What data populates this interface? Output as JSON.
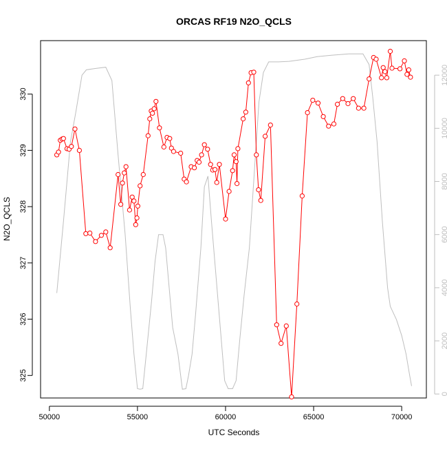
{
  "chart_data": {
    "type": "line",
    "title": "ORCAS RF19 N2O_QCLS",
    "xlabel": "UTC Seconds",
    "ylabel": "N2O_QCLS",
    "xlim": [
      49500,
      71400
    ],
    "ylim": [
      324.6,
      330.95
    ],
    "y2lim": [
      -150,
      13300
    ],
    "x_ticks": [
      50000,
      55000,
      60000,
      65000,
      70000
    ],
    "y_ticks": [
      325,
      326,
      327,
      328,
      329,
      330
    ],
    "y2_ticks": [
      0,
      2000,
      4000,
      6000,
      8000,
      10000,
      12000
    ],
    "grid": false,
    "legend": "none",
    "colors": {
      "n2o": "#ff0000",
      "altitude": "#bebebe",
      "axes": "#000000"
    },
    "series": [
      {
        "role": "n2o",
        "axis": "left",
        "style": "line+points",
        "points": [
          [
            50420,
            328.92
          ],
          [
            50520,
            328.97
          ],
          [
            50620,
            329.18
          ],
          [
            50720,
            329.2
          ],
          [
            50800,
            329.21
          ],
          [
            51000,
            329.03
          ],
          [
            51120,
            329.02
          ],
          [
            51250,
            329.07
          ],
          [
            51450,
            329.38
          ],
          [
            51700,
            329.0
          ],
          [
            52070,
            327.52
          ],
          [
            52300,
            327.53
          ],
          [
            52620,
            327.38
          ],
          [
            52950,
            327.49
          ],
          [
            53200,
            327.55
          ],
          [
            53450,
            327.27
          ],
          [
            53900,
            328.57
          ],
          [
            54050,
            328.04
          ],
          [
            54150,
            328.42
          ],
          [
            54250,
            328.6
          ],
          [
            54350,
            328.71
          ],
          [
            54550,
            327.94
          ],
          [
            54700,
            328.17
          ],
          [
            54800,
            328.1
          ],
          [
            54900,
            327.68
          ],
          [
            54970,
            327.8
          ],
          [
            55020,
            328.01
          ],
          [
            55150,
            328.37
          ],
          [
            55330,
            328.57
          ],
          [
            55600,
            329.26
          ],
          [
            55700,
            329.56
          ],
          [
            55780,
            329.7
          ],
          [
            55850,
            329.66
          ],
          [
            55950,
            329.74
          ],
          [
            56050,
            329.87
          ],
          [
            56250,
            329.4
          ],
          [
            56500,
            329.06
          ],
          [
            56680,
            329.23
          ],
          [
            56830,
            329.21
          ],
          [
            56930,
            329.04
          ],
          [
            57050,
            328.98
          ],
          [
            57450,
            328.95
          ],
          [
            57650,
            328.49
          ],
          [
            57780,
            328.44
          ],
          [
            58050,
            328.71
          ],
          [
            58230,
            328.69
          ],
          [
            58390,
            328.82
          ],
          [
            58500,
            328.79
          ],
          [
            58640,
            328.92
          ],
          [
            58800,
            329.1
          ],
          [
            58980,
            329.02
          ],
          [
            59150,
            328.75
          ],
          [
            59270,
            328.65
          ],
          [
            59400,
            328.66
          ],
          [
            59500,
            328.43
          ],
          [
            59650,
            328.75
          ],
          [
            60000,
            327.78
          ],
          [
            60200,
            328.27
          ],
          [
            60400,
            328.64
          ],
          [
            60490,
            328.92
          ],
          [
            60600,
            328.8
          ],
          [
            60650,
            328.41
          ],
          [
            60700,
            329.03
          ],
          [
            61000,
            329.56
          ],
          [
            61150,
            329.68
          ],
          [
            61300,
            330.2
          ],
          [
            61450,
            330.38
          ],
          [
            61600,
            330.39
          ],
          [
            61750,
            328.92
          ],
          [
            61870,
            328.3
          ],
          [
            62000,
            328.11
          ],
          [
            62250,
            329.25
          ],
          [
            62550,
            329.45
          ],
          [
            62900,
            325.9
          ],
          [
            63150,
            325.57
          ],
          [
            63450,
            325.88
          ],
          [
            63750,
            324.62
          ],
          [
            64050,
            326.27
          ],
          [
            64350,
            328.19
          ],
          [
            64650,
            329.67
          ],
          [
            64950,
            329.89
          ],
          [
            65250,
            329.84
          ],
          [
            65550,
            329.6
          ],
          [
            65850,
            329.43
          ],
          [
            66150,
            329.47
          ],
          [
            66350,
            329.82
          ],
          [
            66650,
            329.92
          ],
          [
            66950,
            329.83
          ],
          [
            67250,
            329.92
          ],
          [
            67550,
            329.75
          ],
          [
            67850,
            329.75
          ],
          [
            68150,
            330.27
          ],
          [
            68400,
            330.65
          ],
          [
            68550,
            330.62
          ],
          [
            68850,
            330.29
          ],
          [
            68950,
            330.47
          ],
          [
            69050,
            330.4
          ],
          [
            69150,
            330.29
          ],
          [
            69350,
            330.76
          ],
          [
            69450,
            330.46
          ],
          [
            69900,
            330.45
          ],
          [
            70150,
            330.59
          ],
          [
            70300,
            330.35
          ],
          [
            70400,
            330.43
          ],
          [
            70500,
            330.3
          ]
        ]
      },
      {
        "role": "altitude",
        "axis": "right",
        "style": "line",
        "points": [
          [
            50420,
            3800
          ],
          [
            50800,
            6500
          ],
          [
            51200,
            9500
          ],
          [
            51500,
            10600
          ],
          [
            51850,
            12000
          ],
          [
            52100,
            12200
          ],
          [
            52600,
            12250
          ],
          [
            53200,
            12300
          ],
          [
            53550,
            11800
          ],
          [
            53900,
            9000
          ],
          [
            54300,
            6000
          ],
          [
            54600,
            3200
          ],
          [
            54800,
            1500
          ],
          [
            55000,
            200
          ],
          [
            55150,
            180
          ],
          [
            55300,
            200
          ],
          [
            55500,
            1500
          ],
          [
            55800,
            3500
          ],
          [
            56000,
            5000
          ],
          [
            56200,
            6000
          ],
          [
            56450,
            6000
          ],
          [
            56600,
            5500
          ],
          [
            56800,
            4000
          ],
          [
            57000,
            2500
          ],
          [
            57300,
            1500
          ],
          [
            57550,
            180
          ],
          [
            57750,
            200
          ],
          [
            57900,
            700
          ],
          [
            58100,
            1500
          ],
          [
            58300,
            3000
          ],
          [
            58600,
            5500
          ],
          [
            58800,
            7800
          ],
          [
            59000,
            8200
          ],
          [
            59200,
            6500
          ],
          [
            59450,
            4500
          ],
          [
            59700,
            2500
          ],
          [
            59950,
            500
          ],
          [
            60150,
            200
          ],
          [
            60400,
            200
          ],
          [
            60600,
            500
          ],
          [
            60800,
            2000
          ],
          [
            61050,
            3700
          ],
          [
            61350,
            5500
          ],
          [
            61650,
            8500
          ],
          [
            61900,
            11000
          ],
          [
            62150,
            12100
          ],
          [
            62450,
            12500
          ],
          [
            63000,
            12500
          ],
          [
            63600,
            12520
          ],
          [
            64500,
            12600
          ],
          [
            65200,
            12700
          ],
          [
            66000,
            12750
          ],
          [
            67000,
            12800
          ],
          [
            67800,
            12800
          ],
          [
            68150,
            12400
          ],
          [
            68350,
            11200
          ],
          [
            68600,
            9500
          ],
          [
            68900,
            6500
          ],
          [
            69200,
            4000
          ],
          [
            69350,
            3300
          ],
          [
            69700,
            2800
          ],
          [
            70000,
            2200
          ],
          [
            70250,
            1500
          ],
          [
            70450,
            700
          ],
          [
            70560,
            300
          ]
        ]
      }
    ]
  }
}
